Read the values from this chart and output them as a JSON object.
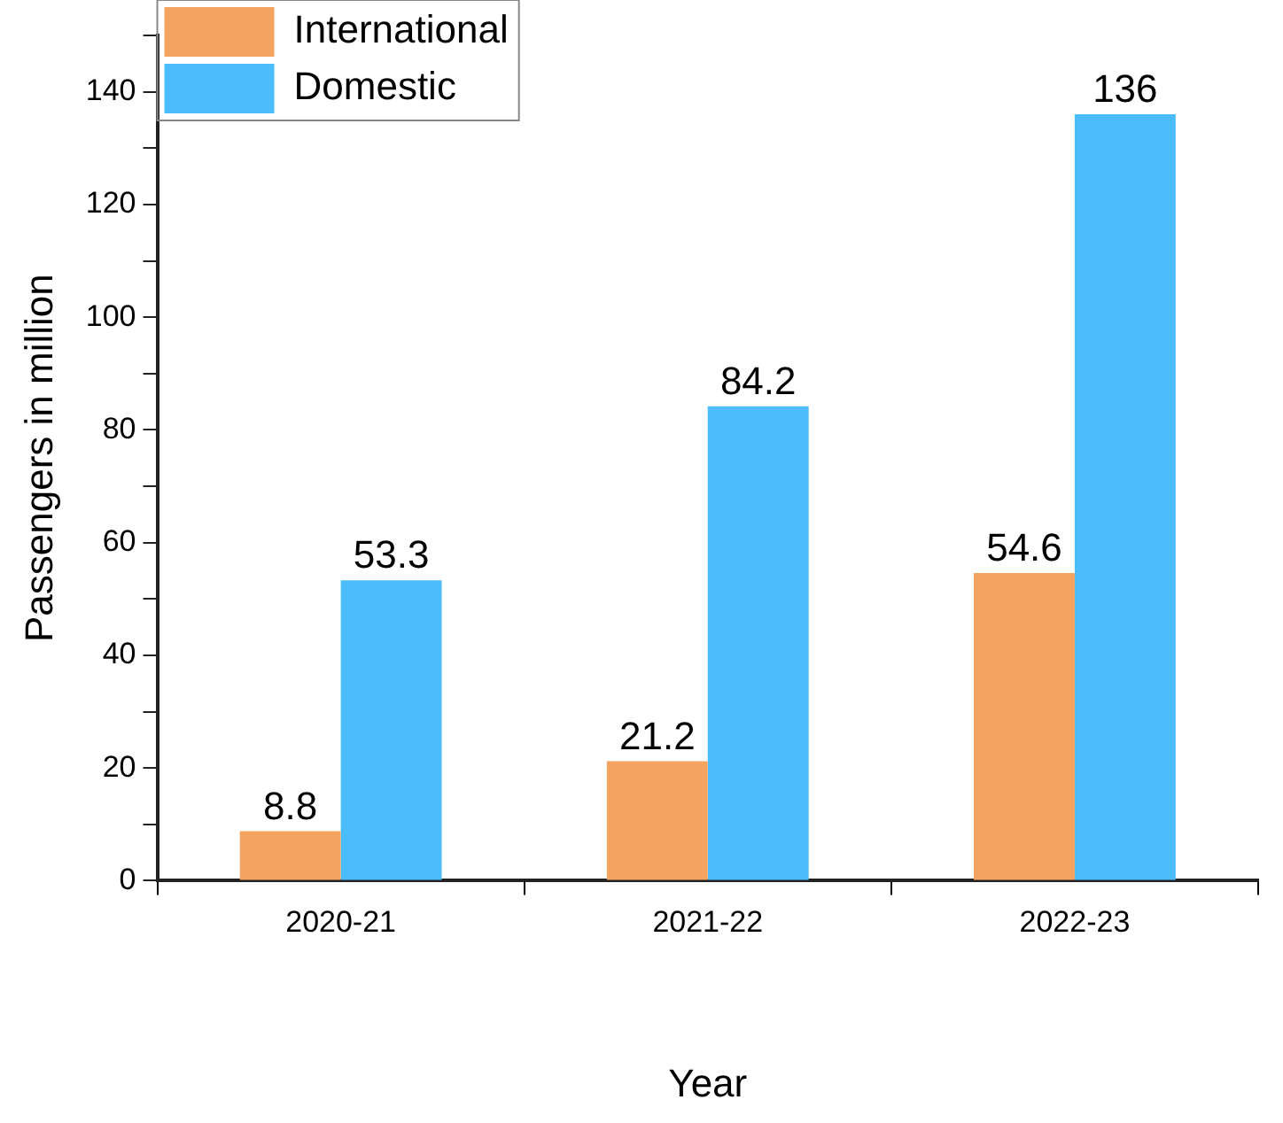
{
  "chart_data": {
    "type": "bar",
    "xlabel": "Year",
    "ylabel": "Passengers in million",
    "categories": [
      "2020-21",
      "2021-22",
      "2022-23"
    ],
    "series": [
      {
        "name": "International",
        "color": "#f4a460",
        "values": [
          8.8,
          21.2,
          54.6
        ]
      },
      {
        "name": "Domestic",
        "color": "#4bbcfc",
        "values": [
          53.3,
          84.2,
          136
        ]
      }
    ],
    "ylim": [
      0,
      150
    ],
    "yticks": [
      0,
      {
        "value": 10,
        "label": null
      },
      20,
      {
        "value": 30,
        "label": null
      },
      40,
      {
        "value": 50,
        "label": null
      },
      60,
      {
        "value": 70,
        "label": null
      },
      80,
      {
        "value": 90,
        "label": null
      },
      100,
      {
        "value": 110,
        "label": null
      },
      120,
      {
        "value": 130,
        "label": null
      },
      140,
      {
        "value": 150,
        "label": null
      }
    ],
    "data_labels": true,
    "grid": false,
    "legend": "top left"
  }
}
